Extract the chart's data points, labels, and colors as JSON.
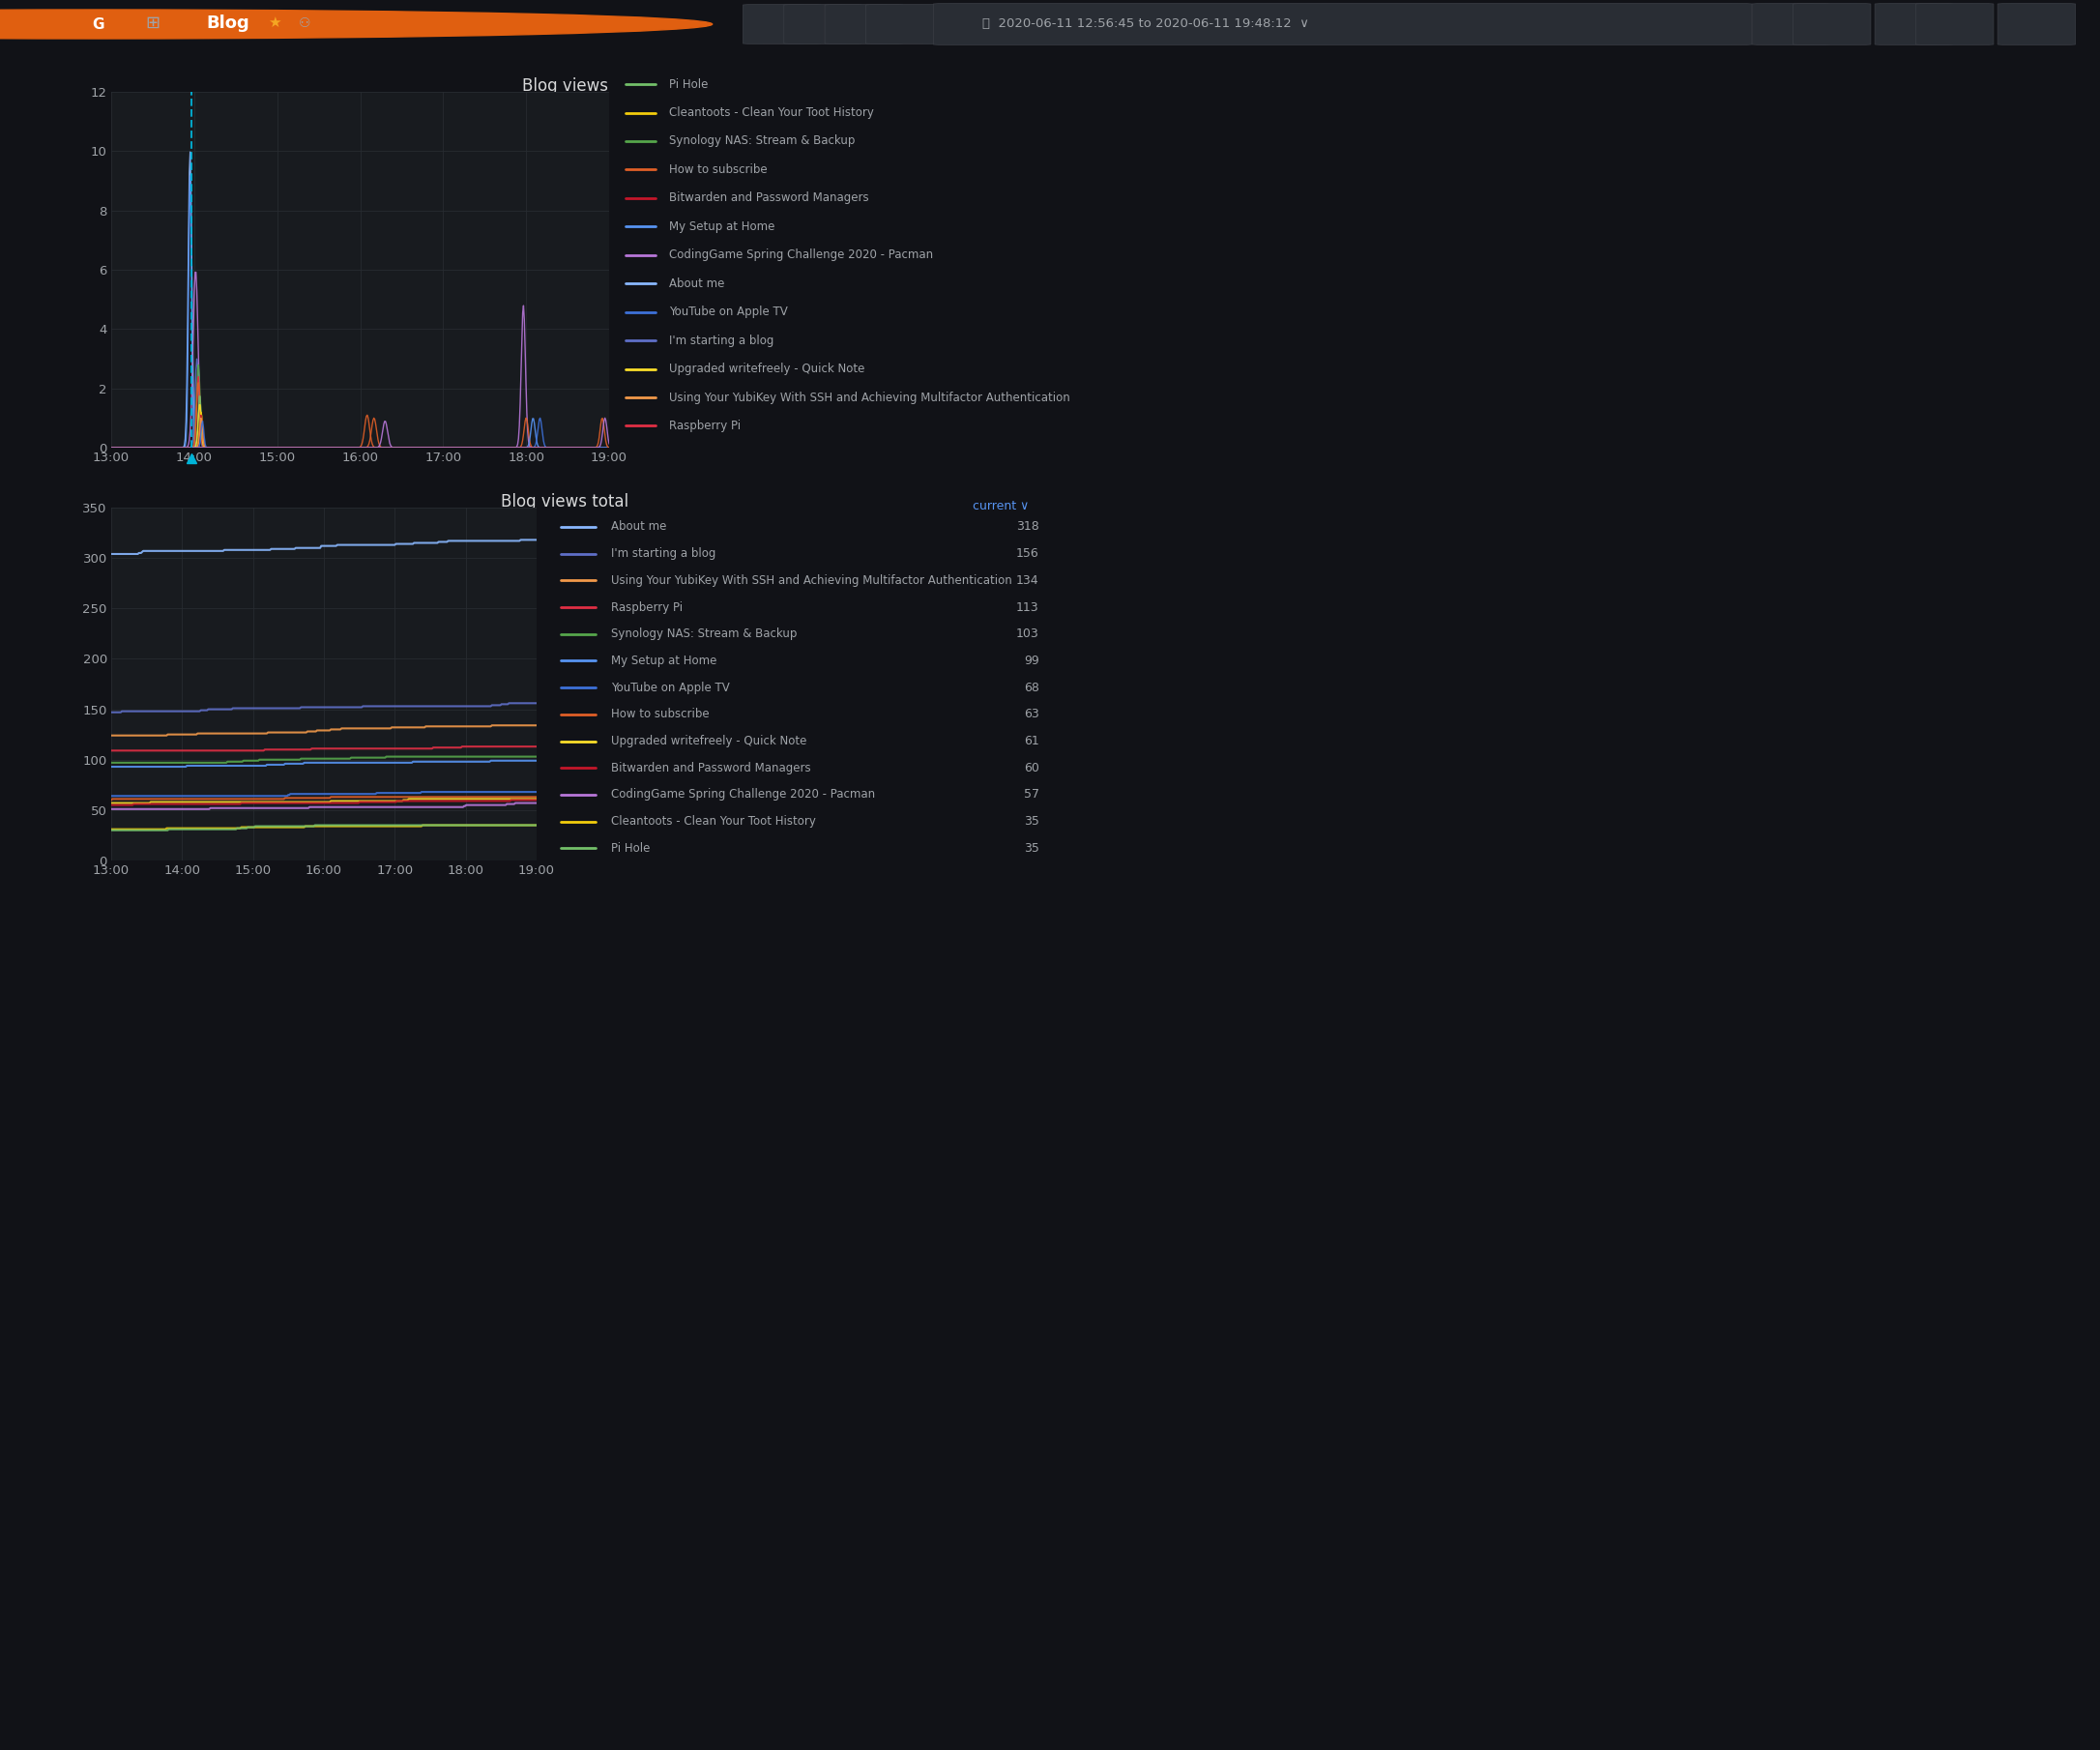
{
  "bg_color": "#111217",
  "panel_bg": "#181b1f",
  "sidebar_color": "#0b0c0e",
  "grid_color": "#272b30",
  "text_color": "#9fa3a8",
  "title_color": "#d8d9da",
  "white": "#ffffff",
  "panel1_title": "Blog views",
  "panel1_yticks": [
    0,
    2,
    4,
    6,
    8,
    10,
    12
  ],
  "xtick_labels": [
    "13:00",
    "14:00",
    "15:00",
    "16:00",
    "17:00",
    "18:00",
    "19:00"
  ],
  "panel2_title": "Blog views total",
  "panel2_yticks": [
    0,
    50,
    100,
    150,
    200,
    250,
    300,
    350
  ],
  "legend1": [
    {
      "label": "Pi Hole",
      "color": "#73bf69"
    },
    {
      "label": "Cleantoots - Clean Your Toot History",
      "color": "#f2cc0c"
    },
    {
      "label": "Synology NAS: Stream & Backup",
      "color": "#56a64b"
    },
    {
      "label": "How to subscribe",
      "color": "#e05f27"
    },
    {
      "label": "Bitwarden and Password Managers",
      "color": "#c4162a"
    },
    {
      "label": "My Setup at Home",
      "color": "#5794f2"
    },
    {
      "label": "CodingGame Spring Challenge 2020 - Pacman",
      "color": "#b877d9"
    },
    {
      "label": "About me",
      "color": "#8ab8ff"
    },
    {
      "label": "YouTube on Apple TV",
      "color": "#3d71d9"
    },
    {
      "label": "I'm starting a blog",
      "color": "#5f6fc8"
    },
    {
      "label": "Upgraded writefreely - Quick Note",
      "color": "#fade2a"
    },
    {
      "label": "Using Your YubiKey With SSH and Achieving Multifactor Authentication",
      "color": "#f2994a"
    },
    {
      "label": "Raspberry Pi",
      "color": "#e02f44"
    }
  ],
  "legend2": [
    {
      "label": "About me",
      "color": "#8ab8ff",
      "value": 318
    },
    {
      "label": "I'm starting a blog",
      "color": "#5f6fc8",
      "value": 156
    },
    {
      "label": "Using Your YubiKey With SSH and Achieving Multifactor Authentication",
      "color": "#f2994a",
      "value": 134
    },
    {
      "label": "Raspberry Pi",
      "color": "#e02f44",
      "value": 113
    },
    {
      "label": "Synology NAS: Stream & Backup",
      "color": "#56a64b",
      "value": 103
    },
    {
      "label": "My Setup at Home",
      "color": "#5794f2",
      "value": 99
    },
    {
      "label": "YouTube on Apple TV",
      "color": "#3d71d9",
      "value": 68
    },
    {
      "label": "How to subscribe",
      "color": "#e05f27",
      "value": 63
    },
    {
      "label": "Upgraded writefreely - Quick Note",
      "color": "#fade2a",
      "value": 61
    },
    {
      "label": "Bitwarden and Password Managers",
      "color": "#c4162a",
      "value": 60
    },
    {
      "label": "CodingGame Spring Challenge 2020 - Pacman",
      "color": "#b877d9",
      "value": 57
    },
    {
      "label": "Cleantoots - Clean Your Toot History",
      "color": "#f2cc0c",
      "value": 35
    },
    {
      "label": "Pi Hole",
      "color": "#73bf69",
      "value": 35
    }
  ]
}
